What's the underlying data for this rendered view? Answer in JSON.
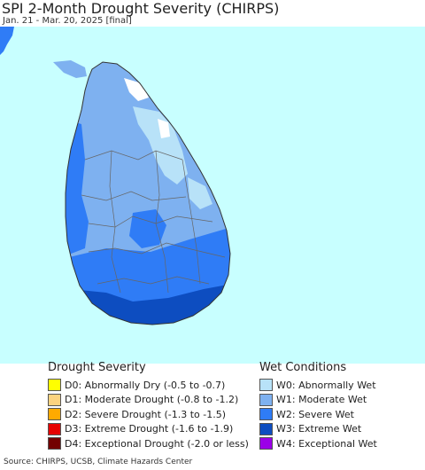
{
  "header": {
    "title": "SPI 2-Month Drought Severity (CHIRPS)",
    "subtitle": "Jan. 21 - Mar. 20, 2025 [final]"
  },
  "map": {
    "region": "Sri Lanka",
    "colors": {
      "ocean": "#c8ffff",
      "w0": "#b8e2f8",
      "w1": "#7eb1f0",
      "w2": "#2f7cf6",
      "w3": "#0d4dc0",
      "normal": "#ffffff",
      "border": "#666666"
    }
  },
  "legend_drought": {
    "heading": "Drought Severity",
    "items": [
      {
        "label": "D0: Abnormally Dry (-0.5 to -0.7)",
        "color": "#ffff00"
      },
      {
        "label": "D1: Moderate Drought (-0.8 to -1.2)",
        "color": "#fcd37f"
      },
      {
        "label": "D2: Severe Drought (-1.3 to -1.5)",
        "color": "#ffaa00"
      },
      {
        "label": "D3: Extreme Drought (-1.6 to -1.9)",
        "color": "#e60000"
      },
      {
        "label": "D4: Exceptional Drought (-2.0 or less)",
        "color": "#730000"
      }
    ]
  },
  "legend_wet": {
    "heading": "Wet Conditions",
    "items": [
      {
        "label": "W0: Abnormally Wet",
        "color": "#b8e2f8"
      },
      {
        "label": "W1: Moderate Wet",
        "color": "#7eb1f0"
      },
      {
        "label": "W2: Severe Wet",
        "color": "#2f7cf6"
      },
      {
        "label": "W3: Extreme Wet",
        "color": "#0d4dc0"
      },
      {
        "label": "W4: Exceptional Wet",
        "color": "#9b00e8"
      }
    ]
  },
  "footer": {
    "source": "Source: CHIRPS, UCSB, Climate Hazards Center"
  }
}
